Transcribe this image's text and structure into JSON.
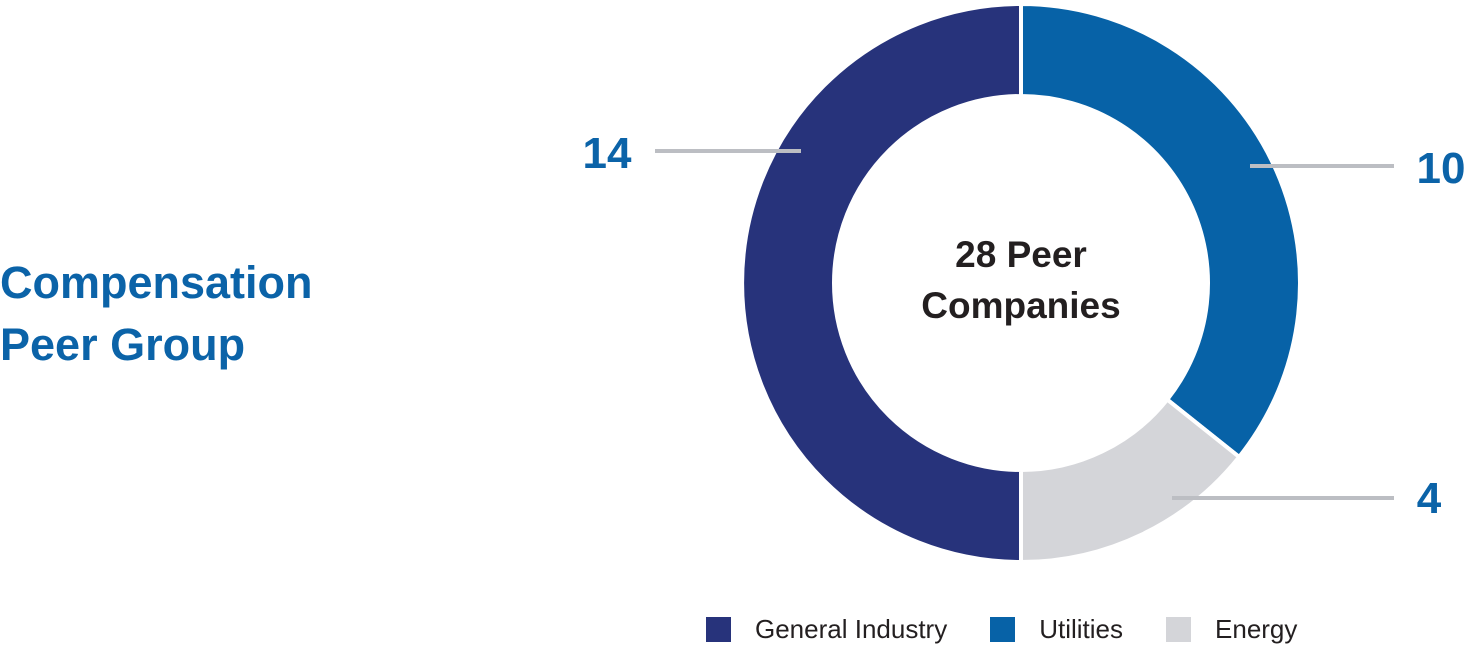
{
  "title": {
    "line1": "Compensation",
    "line2": "Peer Group"
  },
  "chart_data": {
    "type": "pie",
    "donut": true,
    "center_label": [
      "28 Peer",
      "Companies"
    ],
    "total": 28,
    "slices": [
      {
        "name": "General Industry",
        "value": 14,
        "label": "14",
        "color": "#27337b"
      },
      {
        "name": "Utilities",
        "value": 10,
        "label": "10",
        "color": "#0762a7"
      },
      {
        "name": "Energy",
        "value": 4,
        "label": "4",
        "color": "#d4d5d9"
      }
    ],
    "leader_line_color": "#bcbec3",
    "legend_position": "bottom"
  },
  "legend": {
    "items": [
      {
        "label": "General Industry",
        "color": "#27337b"
      },
      {
        "label": "Utilities",
        "color": "#0762a7"
      },
      {
        "label": "Energy",
        "color": "#d4d5d9"
      }
    ]
  }
}
